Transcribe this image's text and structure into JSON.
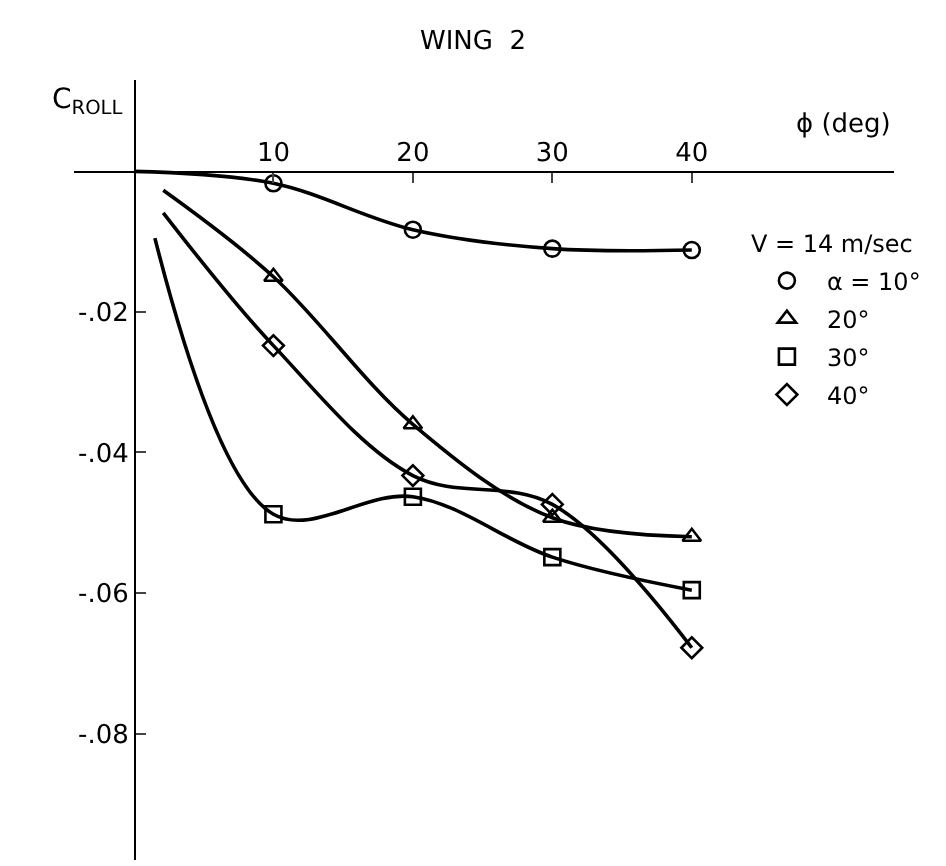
{
  "chart_data": {
    "type": "scatter",
    "title": "WING  2",
    "xlabel": "ϕ (deg)",
    "ylabel": "C$_{ROLL}$",
    "legend_title": "V = 14 m/sec",
    "xlim": [
      -4.3,
      54.5
    ],
    "ylim": [
      -0.098,
      0.013
    ],
    "xticks": [
      10,
      20,
      30,
      40
    ],
    "yticks": [
      {
        "value": -0.02,
        "label": "-.02"
      },
      {
        "value": -0.04,
        "label": "-.04"
      },
      {
        "value": -0.06,
        "label": "-.06"
      },
      {
        "value": -0.08,
        "label": "-.08"
      }
    ],
    "legend": "top right",
    "series": [
      {
        "type": "line",
        "color": "#000000",
        "marker": "none",
        "x": [
          0,
          10,
          20,
          30,
          40
        ],
        "values": [
          0,
          -0.0017,
          -0.0083,
          -0.011,
          -0.0112
        ]
      },
      {
        "type": "line",
        "color": "#000000",
        "marker": "none",
        "x": [
          2.1,
          10,
          20,
          30,
          40
        ],
        "values": [
          -0.0027,
          -0.015,
          -0.036,
          -0.0493,
          -0.052
        ]
      },
      {
        "type": "line",
        "color": "#000000",
        "marker": "none",
        "x": [
          1.5,
          10,
          20,
          30,
          40
        ],
        "values": [
          -0.0095,
          -0.0488,
          -0.0463,
          -0.0549,
          -0.0596
        ]
      },
      {
        "type": "line",
        "color": "#000000",
        "marker": "none",
        "x": [
          2.1,
          10,
          20,
          30,
          40
        ],
        "values": [
          -0.0059,
          -0.0248,
          -0.0433,
          -0.0474,
          -0.0678
        ]
      },
      {
        "name": "α = 10°",
        "color": "#000000",
        "marker": "circle",
        "x": [
          10,
          20,
          30,
          40
        ],
        "values": [
          -0.0017,
          -0.0083,
          -0.011,
          -0.0112
        ]
      },
      {
        "name": "20°",
        "color": "#000000",
        "marker": "triangle",
        "x": [
          10,
          20,
          30,
          40
        ],
        "values": [
          -0.015,
          -0.036,
          -0.0493,
          -0.052
        ]
      },
      {
        "name": "30°",
        "color": "#000000",
        "marker": "square",
        "x": [
          10,
          20,
          30,
          40
        ],
        "values": [
          -0.0488,
          -0.0463,
          -0.0549,
          -0.0596
        ]
      },
      {
        "name": "40°",
        "color": "#000000",
        "marker": "diamond",
        "x": [
          10,
          20,
          30,
          40
        ],
        "values": [
          -0.0248,
          -0.0433,
          -0.0474,
          -0.0678
        ]
      }
    ]
  }
}
